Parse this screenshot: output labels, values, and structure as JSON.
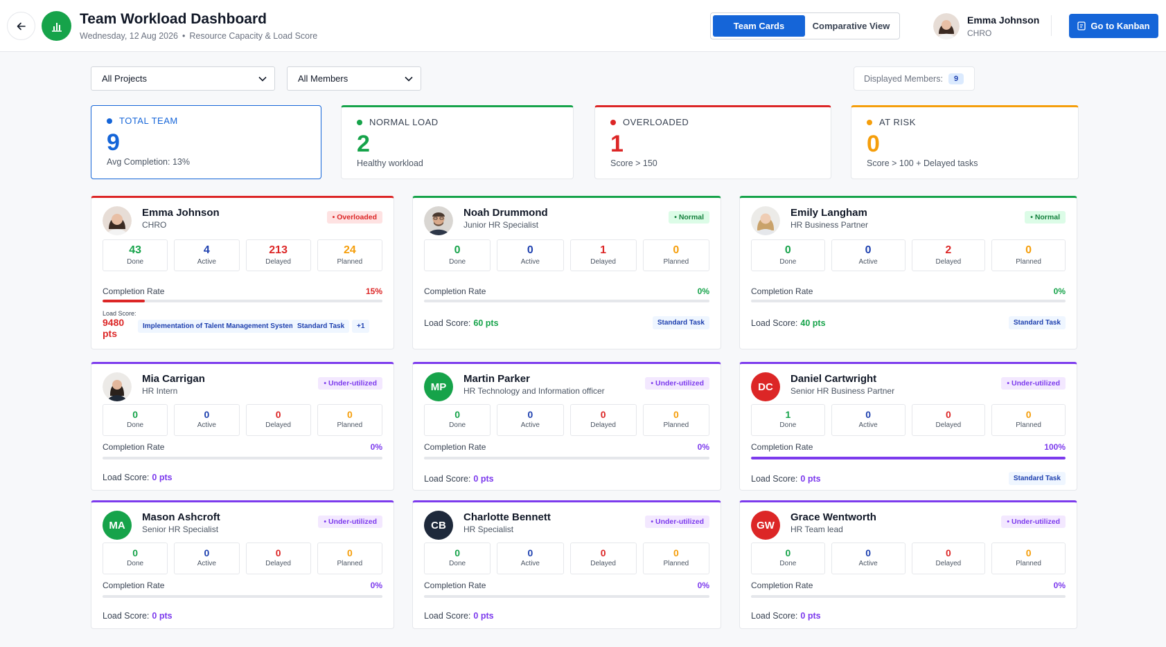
{
  "header": {
    "title": "Team Workload Dashboard",
    "date": "Wednesday, 12 Aug 2026",
    "subtitle": "Resource Capacity & Load Score",
    "view_tabs": [
      "Team Cards",
      "Comparative View"
    ],
    "active_tab": "Team Cards",
    "user": {
      "name": "Emma Johnson",
      "role": "CHRO"
    },
    "kanban_label": "Go to Kanban"
  },
  "filters": {
    "projects": "All Projects",
    "members": "All Members",
    "displayed_label": "Displayed Members:",
    "displayed_count": "9"
  },
  "stats": [
    {
      "label": "TOTAL TEAM",
      "value": "9",
      "note": "Avg Completion: 13%",
      "color": "#1565d8"
    },
    {
      "label": "NORMAL LOAD",
      "value": "2",
      "note": "Healthy workload",
      "color": "#16a34a"
    },
    {
      "label": "OVERLOADED",
      "value": "1",
      "note": "Score > 150",
      "color": "#dc2626"
    },
    {
      "label": "AT RISK",
      "value": "0",
      "note": "Score > 100 + Delayed tasks",
      "color": "#f59e0b"
    }
  ],
  "metric_labels": {
    "done": "Done",
    "active": "Active",
    "delayed": "Delayed",
    "planned": "Planned"
  },
  "completion_label": "Completion Rate",
  "load_label": "Load Score:",
  "members": [
    {
      "name": "Emma Johnson",
      "role": "CHRO",
      "initials": "",
      "status": "Overloaded",
      "done": "43",
      "active": "4",
      "delayed": "213",
      "planned": "24",
      "completion": "15%",
      "completion_frac": 0.15,
      "load": "9480 pts",
      "tags": [
        "Implementation of Talent Management System",
        "Standard Task",
        "+1"
      ]
    },
    {
      "name": "Noah Drummond",
      "role": "Junior HR Specialist",
      "initials": "",
      "status": "Normal",
      "done": "0",
      "active": "0",
      "delayed": "1",
      "planned": "0",
      "completion": "0%",
      "completion_frac": 0,
      "load": "60 pts",
      "tags": [
        "Standard Task"
      ]
    },
    {
      "name": "Emily Langham",
      "role": "HR Business Partner",
      "initials": "",
      "status": "Normal",
      "done": "0",
      "active": "0",
      "delayed": "2",
      "planned": "0",
      "completion": "0%",
      "completion_frac": 0,
      "load": "40 pts",
      "tags": [
        "Standard Task"
      ]
    },
    {
      "name": "Mia Carrigan",
      "role": "HR Intern",
      "initials": "",
      "status": "Under-utilized",
      "done": "0",
      "active": "0",
      "delayed": "0",
      "planned": "0",
      "completion": "0%",
      "completion_frac": 0,
      "load": "0 pts",
      "tags": []
    },
    {
      "name": "Martin Parker",
      "role": "HR Technology and Information officer",
      "initials": "MP",
      "status": "Under-utilized",
      "done": "0",
      "active": "0",
      "delayed": "0",
      "planned": "0",
      "completion": "0%",
      "completion_frac": 0,
      "load": "0 pts",
      "tags": []
    },
    {
      "name": "Daniel Cartwright",
      "role": "Senior HR Business Partner",
      "initials": "DC",
      "status": "Under-utilized",
      "done": "1",
      "active": "0",
      "delayed": "0",
      "planned": "0",
      "completion": "100%",
      "completion_frac": 1,
      "load": "0 pts",
      "tags": [
        "Standard Task"
      ]
    },
    {
      "name": "Mason Ashcroft",
      "role": "Senior HR Specialist",
      "initials": "MA",
      "status": "Under-utilized",
      "done": "0",
      "active": "0",
      "delayed": "0",
      "planned": "0",
      "completion": "0%",
      "completion_frac": 0,
      "load": "0 pts",
      "tags": []
    },
    {
      "name": "Charlotte Bennett",
      "role": "HR Specialist",
      "initials": "CB",
      "status": "Under-utilized",
      "done": "0",
      "active": "0",
      "delayed": "0",
      "planned": "0",
      "completion": "0%",
      "completion_frac": 0,
      "load": "0 pts",
      "tags": []
    },
    {
      "name": "Grace Wentworth",
      "role": "HR Team lead",
      "initials": "GW",
      "status": "Under-utilized",
      "done": "0",
      "active": "0",
      "delayed": "0",
      "planned": "0",
      "completion": "0%",
      "completion_frac": 0,
      "load": "0 pts",
      "tags": []
    }
  ],
  "colors": {
    "primary": "#1565d8",
    "green": "#16a34a",
    "red": "#dc2626",
    "amber": "#f59e0b",
    "purple": "#7c3aed",
    "blue_text": "#1e40af"
  }
}
